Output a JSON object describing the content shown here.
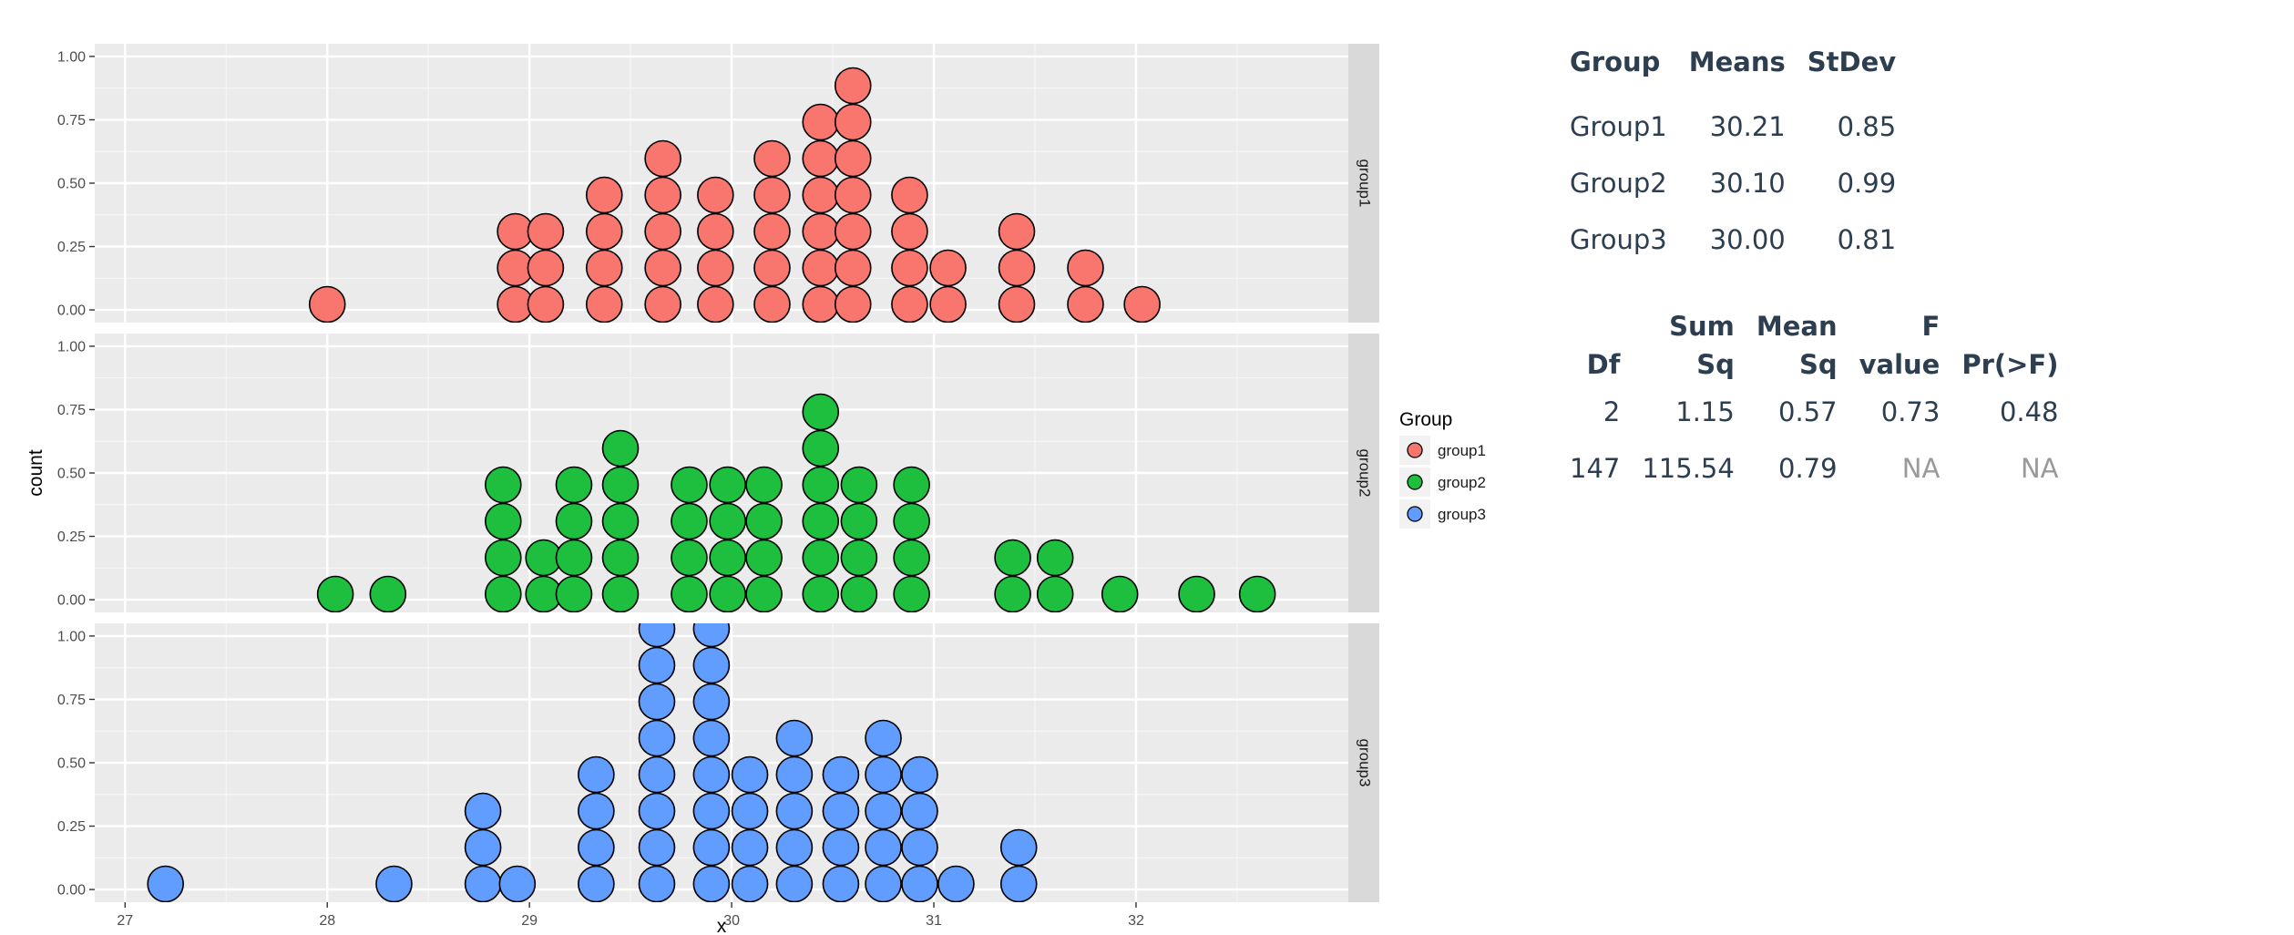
{
  "chart_data": {
    "type": "dotplot",
    "xlabel": "x",
    "ylabel": "count",
    "xlim": [
      26.85,
      33.05
    ],
    "ylim": [
      -0.05,
      1.05
    ],
    "x_ticks": [
      "27",
      "28",
      "29",
      "30",
      "31",
      "32"
    ],
    "y_ticks": [
      "0.00",
      "0.25",
      "0.50",
      "0.75",
      "1.00"
    ],
    "grid": true,
    "legend": {
      "title": "Group",
      "position": "right",
      "entries": [
        {
          "label": "group1",
          "color": "#F8766D"
        },
        {
          "label": "group2",
          "color": "#1EBF3F"
        },
        {
          "label": "group3",
          "color": "#619CFF"
        }
      ]
    },
    "panels": [
      {
        "strip": "group1",
        "color": "#F8766D",
        "stacks": [
          {
            "x": 28.0,
            "n": 1
          },
          {
            "x": 28.93,
            "n": 3
          },
          {
            "x": 29.08,
            "n": 3
          },
          {
            "x": 29.37,
            "n": 4
          },
          {
            "x": 29.66,
            "n": 5
          },
          {
            "x": 29.92,
            "n": 4
          },
          {
            "x": 30.2,
            "n": 5
          },
          {
            "x": 30.44,
            "n": 6
          },
          {
            "x": 30.6,
            "n": 7
          },
          {
            "x": 30.88,
            "n": 4
          },
          {
            "x": 31.07,
            "n": 2
          },
          {
            "x": 31.41,
            "n": 3
          },
          {
            "x": 31.75,
            "n": 2
          },
          {
            "x": 32.03,
            "n": 1
          }
        ]
      },
      {
        "strip": "group2",
        "color": "#1EBF3F",
        "stacks": [
          {
            "x": 28.04,
            "n": 1
          },
          {
            "x": 28.3,
            "n": 1
          },
          {
            "x": 28.87,
            "n": 4
          },
          {
            "x": 29.07,
            "n": 2
          },
          {
            "x": 29.22,
            "n": 4
          },
          {
            "x": 29.45,
            "n": 5
          },
          {
            "x": 29.79,
            "n": 4
          },
          {
            "x": 29.98,
            "n": 4
          },
          {
            "x": 30.16,
            "n": 4
          },
          {
            "x": 30.44,
            "n": 6
          },
          {
            "x": 30.63,
            "n": 4
          },
          {
            "x": 30.89,
            "n": 4
          },
          {
            "x": 31.39,
            "n": 2
          },
          {
            "x": 31.6,
            "n": 2
          },
          {
            "x": 31.92,
            "n": 1
          },
          {
            "x": 32.3,
            "n": 1
          },
          {
            "x": 32.6,
            "n": 1
          }
        ]
      },
      {
        "strip": "group3",
        "color": "#619CFF",
        "stacks": [
          {
            "x": 27.2,
            "n": 1
          },
          {
            "x": 28.33,
            "n": 1
          },
          {
            "x": 28.77,
            "n": 3
          },
          {
            "x": 28.94,
            "n": 1
          },
          {
            "x": 29.33,
            "n": 4
          },
          {
            "x": 29.63,
            "n": 8
          },
          {
            "x": 29.9,
            "n": 8
          },
          {
            "x": 30.09,
            "n": 4
          },
          {
            "x": 30.31,
            "n": 5
          },
          {
            "x": 30.54,
            "n": 4
          },
          {
            "x": 30.75,
            "n": 5
          },
          {
            "x": 30.93,
            "n": 4
          },
          {
            "x": 31.11,
            "n": 1
          },
          {
            "x": 31.42,
            "n": 2
          }
        ]
      }
    ]
  },
  "means_table": {
    "headers": [
      "Group",
      "Means",
      "StDev"
    ],
    "rows": [
      [
        "Group1",
        "30.21",
        "0.85"
      ],
      [
        "Group2",
        "30.10",
        "0.99"
      ],
      [
        "Group3",
        "30.00",
        "0.81"
      ]
    ]
  },
  "anova_table": {
    "headers": [
      {
        "line1": "",
        "line2": "Df"
      },
      {
        "line1": "Sum",
        "line2": "Sq"
      },
      {
        "line1": "Mean",
        "line2": "Sq"
      },
      {
        "line1": "F",
        "line2": "value"
      },
      {
        "line1": "",
        "line2": "Pr(>F)"
      }
    ],
    "rows": [
      [
        "2",
        "1.15",
        "0.57",
        "0.73",
        "0.48"
      ],
      [
        "147",
        "115.54",
        "0.79",
        "NA",
        "NA"
      ]
    ]
  }
}
